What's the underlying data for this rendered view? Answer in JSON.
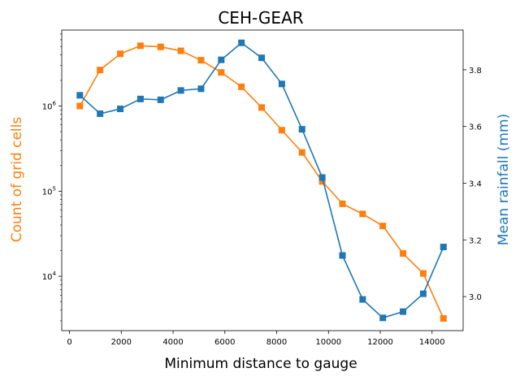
{
  "chart_data": {
    "type": "line",
    "title": "CEH-GEAR",
    "xlabel": "Minimum distance to gauge",
    "ylabel_left": "Count of grid cells",
    "ylabel_right": "Mean rainfall (mm)",
    "x": [
      400,
      1180,
      1960,
      2740,
      3520,
      4300,
      5080,
      5860,
      6640,
      7420,
      8200,
      8980,
      9760,
      10540,
      11320,
      12100,
      12880,
      13660,
      14440
    ],
    "xlim": [
      -300,
      15200
    ],
    "xticks": [
      0,
      2000,
      4000,
      6000,
      8000,
      10000,
      12000,
      14000
    ],
    "xtick_labels": [
      "0",
      "2000",
      "4000",
      "6000",
      "8000",
      "10000",
      "12000",
      "14000"
    ],
    "left_axis": {
      "scale": "log",
      "ylim": [
        2300,
        7800000
      ],
      "ticks": [
        10000,
        100000,
        1000000
      ],
      "tick_labels": [
        "10",
        "10",
        "10"
      ],
      "tick_exponents": [
        "4",
        "5",
        "6"
      ],
      "color": "#ff7f0e"
    },
    "right_axis": {
      "scale": "linear",
      "ylim": [
        2.88,
        3.94
      ],
      "ticks": [
        3.0,
        3.2,
        3.4,
        3.6,
        3.8
      ],
      "tick_labels": [
        "3.0",
        "3.2",
        "3.4",
        "3.6",
        "3.8"
      ],
      "color": "#1f77b4"
    },
    "series": [
      {
        "axis": "left",
        "color": "#ff7f0e",
        "marker": "square",
        "values": [
          1000000,
          2650000,
          4100000,
          5100000,
          4950000,
          4450000,
          3450000,
          2480000,
          1680000,
          960000,
          520000,
          285000,
          130000,
          71000,
          54000,
          39000,
          18500,
          10800,
          3200
        ]
      },
      {
        "axis": "right",
        "color": "#1f77b4",
        "marker": "square",
        "values": [
          3.71,
          3.645,
          3.662,
          3.697,
          3.694,
          3.727,
          3.733,
          3.835,
          3.895,
          3.842,
          3.75,
          3.59,
          3.42,
          3.145,
          2.99,
          2.925,
          2.947,
          3.01,
          3.175
        ]
      }
    ]
  }
}
